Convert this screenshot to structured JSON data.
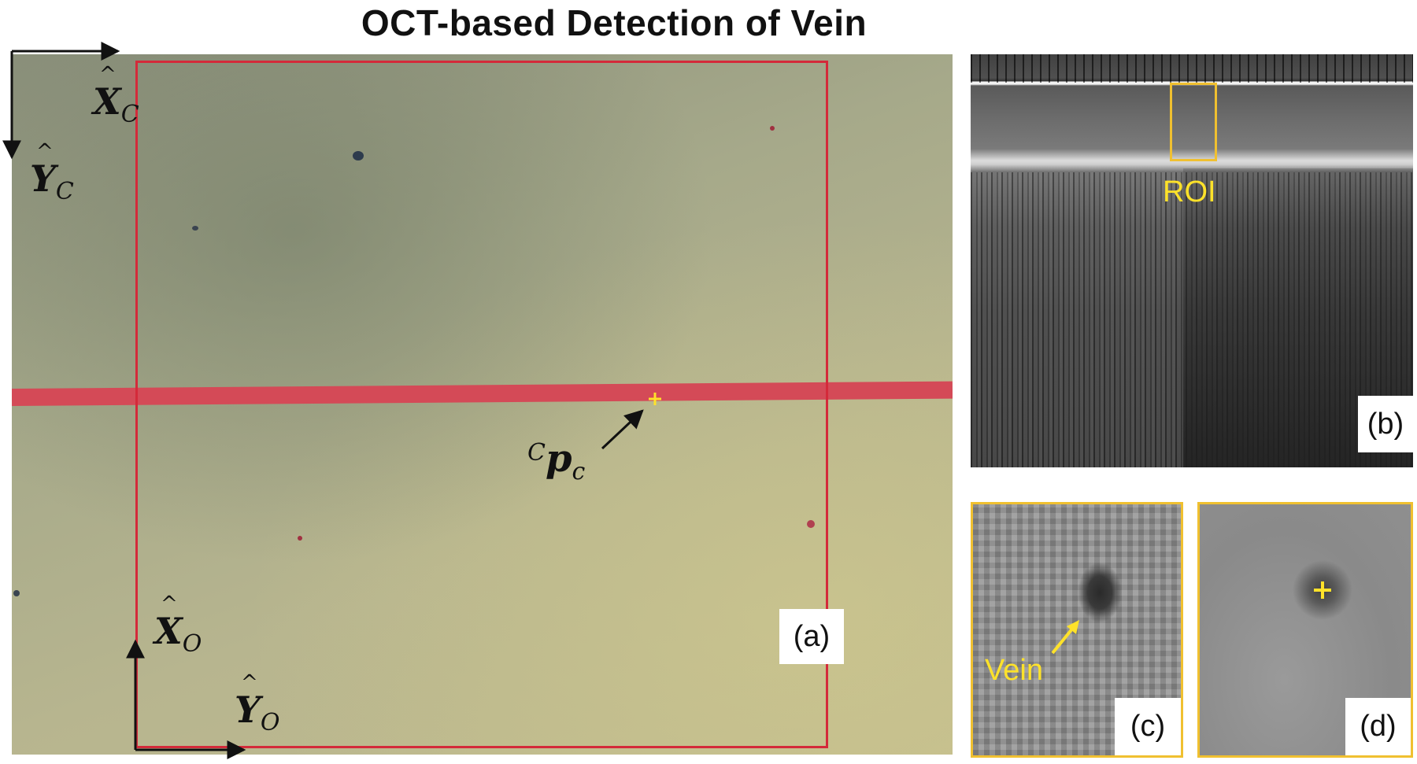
{
  "figure": {
    "title": "OCT-based Detection of Vein",
    "panels": {
      "a": {
        "label": "(a)"
      },
      "b": {
        "label": "(b)",
        "roi_label": "ROI"
      },
      "c": {
        "label": "(c)",
        "annotation": "Vein"
      },
      "d": {
        "label": "(d)"
      }
    },
    "math_labels": {
      "x_c": {
        "base": "X",
        "sub": "C"
      },
      "y_c": {
        "base": "Y",
        "sub": "C"
      },
      "x_o": {
        "base": "X",
        "sub": "O"
      },
      "y_o": {
        "base": "Y",
        "sub": "O"
      },
      "p_c": {
        "sup": "C",
        "base": "p",
        "sub": "c"
      }
    },
    "colors": {
      "crosshair": "#ffe22a",
      "roi_box": "#f0c030",
      "red_line": "#d44a57",
      "red_box": "#d42a3a",
      "axes": "#111111"
    }
  }
}
